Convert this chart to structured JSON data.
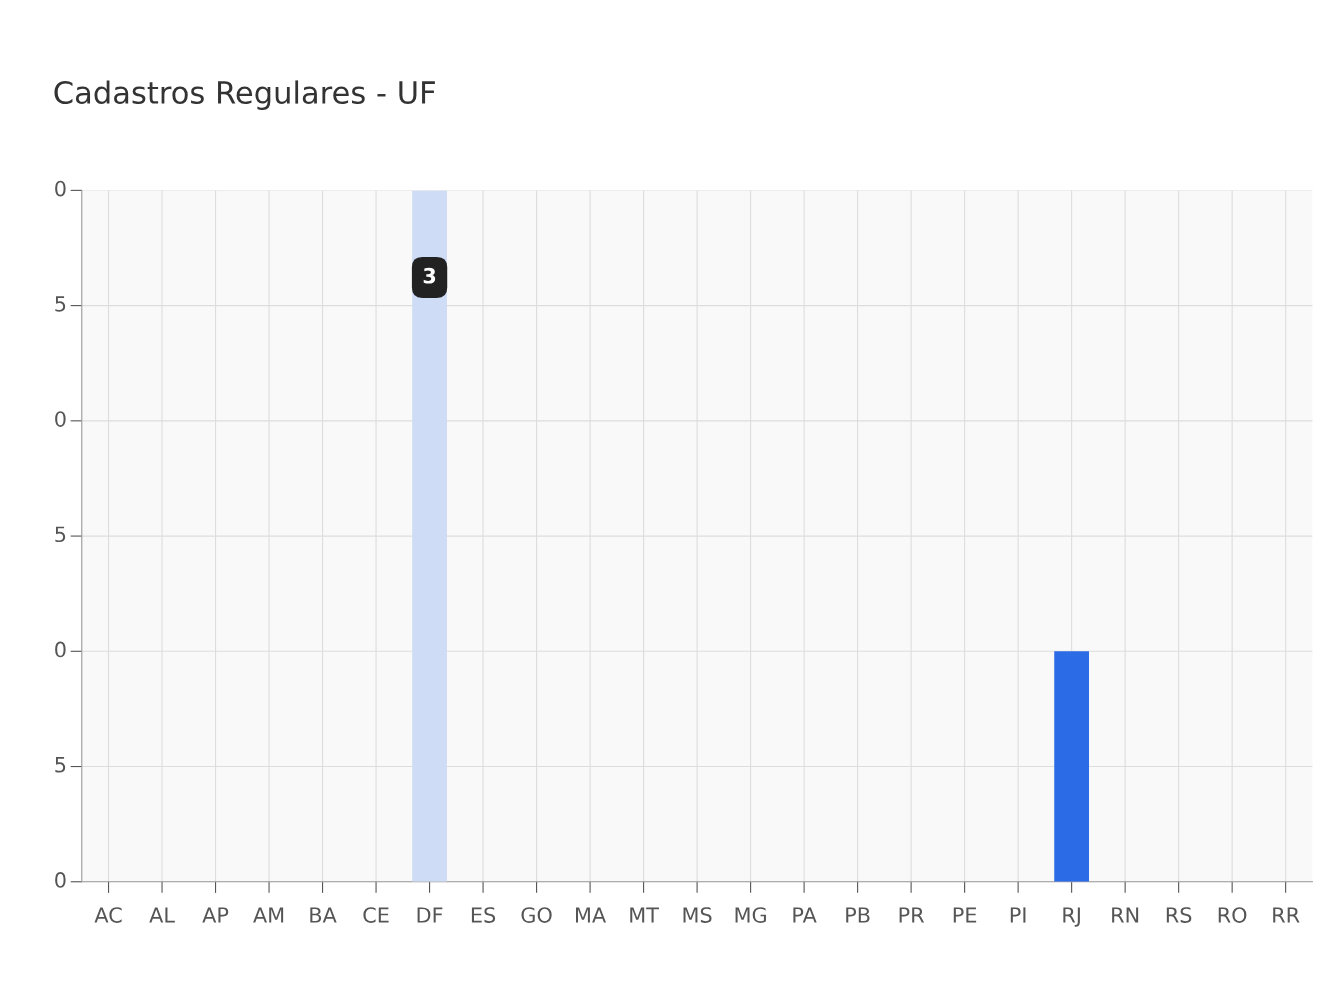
{
  "chart_data": {
    "type": "bar",
    "title": "Cadastros Regulares - UF",
    "categories": [
      "AC",
      "AL",
      "AP",
      "AM",
      "BA",
      "CE",
      "DF",
      "ES",
      "GO",
      "MA",
      "MT",
      "MS",
      "MG",
      "PA",
      "PB",
      "PR",
      "PE",
      "PI",
      "RJ",
      "RN",
      "RS",
      "RO",
      "RR"
    ],
    "values": [
      0,
      0,
      0,
      0,
      0,
      0,
      3,
      0,
      0,
      0,
      0,
      0,
      0,
      0,
      0,
      0,
      0,
      0,
      1,
      0,
      0,
      0,
      0
    ],
    "ylim": [
      0,
      3
    ],
    "annotations": [
      "0",
      "5",
      "0",
      "5",
      "0",
      "5",
      "0"
    ],
    "colors": [
      "#2b6be6",
      "#2b6be6",
      "#2b6be6",
      "#2b6be6",
      "#2b6be6",
      "#2b6be6",
      "#cfdcf5",
      "#2b6be6",
      "#2b6be6",
      "#2b6be6",
      "#2b6be6",
      "#2b6be6",
      "#2b6be6",
      "#2b6be6",
      "#2b6be6",
      "#2b6be6",
      "#2b6be6",
      "#2b6be6",
      "#2b6be6",
      "#2b6be6",
      "#2b6be6",
      "#2b6be6",
      "#2b6be6"
    ],
    "value_labels": [
      null,
      null,
      null,
      null,
      null,
      null,
      "3",
      null,
      null,
      null,
      null,
      null,
      null,
      null,
      null,
      null,
      null,
      null,
      null,
      null,
      null,
      null,
      null
    ],
    "grid": true
  }
}
